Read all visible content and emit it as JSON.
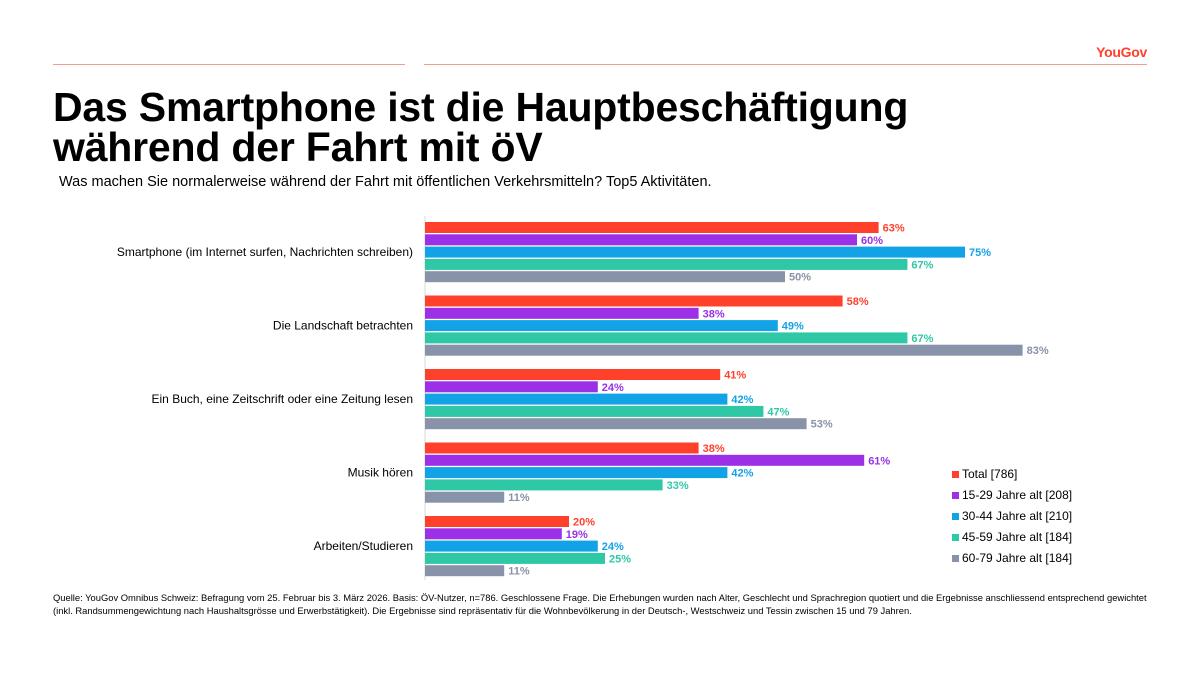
{
  "header": {
    "logo": "YouGov",
    "title_line1": "Das Smartphone ist die Hauptbeschäftigung",
    "title_line2": "während der Fahrt mit öV",
    "subtitle": "Was machen Sie normalerweise während der Fahrt mit öffentlichen Verkehrsmitteln? Top5 Aktivitäten."
  },
  "chart_data": {
    "type": "bar",
    "orientation": "horizontal",
    "categories": [
      "Smartphone (im Internet surfen, Nachrichten schreiben)",
      "Die Landschaft betrachten",
      "Ein Buch, eine Zeitschrift oder eine Zeitung lesen",
      "Musik hören",
      "Arbeiten/Studieren"
    ],
    "series": [
      {
        "name": "Total [786]",
        "color": "#ff412c",
        "values": [
          63,
          58,
          41,
          38,
          20
        ]
      },
      {
        "name": "15-29 Jahre alt [208]",
        "color": "#9b30e6",
        "values": [
          60,
          38,
          24,
          61,
          19
        ]
      },
      {
        "name": "30-44 Jahre alt [210]",
        "color": "#12a3e6",
        "values": [
          75,
          49,
          42,
          42,
          24
        ]
      },
      {
        "name": "45-59 Jahre alt [184]",
        "color": "#2fc8a6",
        "values": [
          67,
          67,
          47,
          33,
          25
        ]
      },
      {
        "name": "60-79 Jahre alt [184]",
        "color": "#8892a8",
        "values": [
          50,
          83,
          53,
          11,
          11
        ]
      }
    ],
    "value_suffix": "%",
    "xlim": [
      0,
      100
    ],
    "legend": "bottom-right"
  },
  "footnote": "Quelle: YouGov Omnibus Schweiz: Befragung vom 25. Februar bis 3. März 2026. Basis: ÖV-Nutzer, n=786. Geschlossene Frage. Die Erhebungen wurden nach Alter, Geschlecht und Sprachregion quotiert und die Ergebnisse anschliessend entsprechend gewichtet (inkl. Randsummengewichtung nach Haushaltsgrösse und Erwerbstätigkeit). Die Ergebnisse sind repräsentativ für die Wohnbevölkerung in der Deutsch-, Westschweiz und Tessin zwischen 15 und 79 Jahren."
}
